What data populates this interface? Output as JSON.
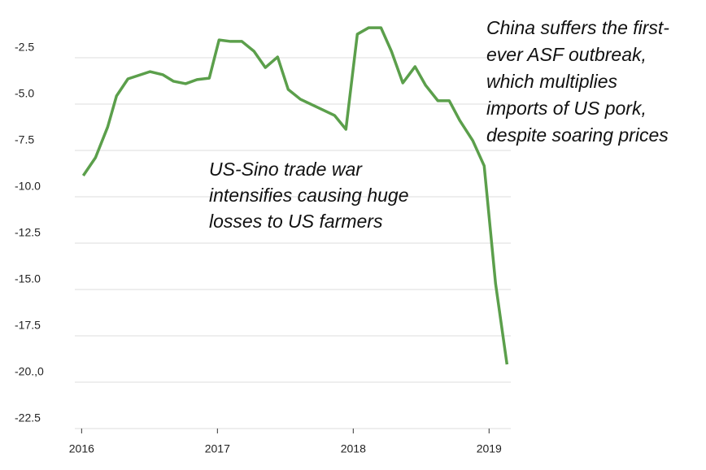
{
  "chart_data": {
    "type": "line",
    "x": [
      2016.012,
      2016.102,
      2016.192,
      2016.257,
      2016.341,
      2016.503,
      2016.599,
      2016.677,
      2016.766,
      2016.85,
      2016.94,
      2017.012,
      2017.096,
      2017.18,
      2017.269,
      2017.353,
      2017.443,
      2017.521,
      2017.611,
      2017.862,
      2017.946,
      2018.03,
      2018.114,
      2018.204,
      2018.281,
      2018.365,
      2018.455,
      2018.533,
      2018.623,
      2018.707,
      2018.784,
      2018.88,
      2018.964,
      2019.048,
      2019.132
    ],
    "series": [
      {
        "color": "#5b9f4b",
        "values": [
          -8.86,
          -7.89,
          -6.23,
          -4.56,
          -3.64,
          -3.25,
          -3.42,
          -3.77,
          -3.9,
          -3.68,
          -3.6,
          -1.54,
          -1.62,
          -1.62,
          -2.15,
          -3.03,
          -2.46,
          -4.21,
          -4.74,
          -5.61,
          -6.36,
          -1.23,
          -0.88,
          -0.88,
          -2.15,
          -3.86,
          -2.98,
          -3.99,
          -4.82,
          -4.82,
          -5.88,
          -6.97,
          -8.33,
          -14.69,
          -19.04
        ]
      }
    ],
    "xlim": [
      2015.95,
      2019.16
    ],
    "xticks": [
      2016,
      2017,
      2018,
      2019
    ],
    "ylim": [
      -22.5,
      0
    ],
    "yticks": [
      -2.5,
      {
        "value": -5,
        "label": "-5.0"
      },
      -7.5,
      {
        "value": -10,
        "label": "-10.0"
      },
      -12.5,
      {
        "value": -15,
        "label": "-15.0"
      },
      -17.5,
      {
        "value": -20,
        "label": "-20.,0"
      },
      -22.5
    ],
    "grid": true,
    "annotations": [
      {
        "lines": [
          "China suffers the first-",
          "ever ASF outbreak,",
          "which multiplies",
          "imports of US pork,",
          "despite soaring prices"
        ]
      },
      {
        "lines": [
          "US-Sino trade war",
          "intensifies causing huge",
          "losses to US farmers"
        ]
      }
    ]
  }
}
